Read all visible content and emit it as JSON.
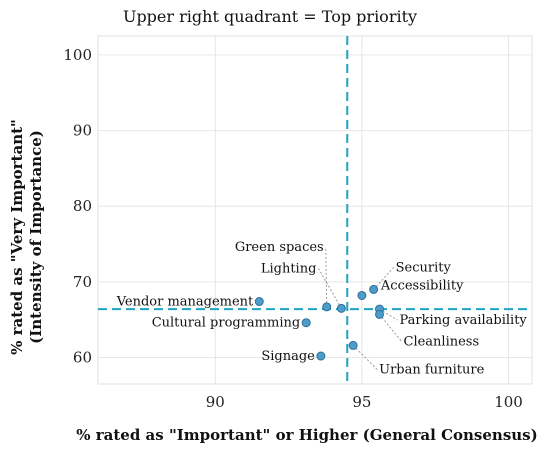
{
  "chart_data": {
    "type": "scatter",
    "title": "Upper right quadrant = Top priority",
    "xlabel": "% rated as \"Important\" or Higher (General Consensus)",
    "ylabel_line1": "% rated as \"Very Important\"",
    "ylabel_line2": "(Intensity of Importance)",
    "xlim": [
      86,
      100.8
    ],
    "ylim": [
      56.5,
      102.5
    ],
    "xticks": [
      90,
      95,
      100
    ],
    "yticks": [
      60,
      70,
      80,
      90,
      100
    ],
    "grid": true,
    "reference_lines": {
      "x": 94.5,
      "y": 66.4
    },
    "point_color": "#4e9cc9",
    "reference_color": "#1fa3c4",
    "points": [
      {
        "label": "Vendor management",
        "x": 91.5,
        "y": 67.4
      },
      {
        "label": "Cultural programming",
        "x": 93.1,
        "y": 64.6
      },
      {
        "label": "Signage",
        "x": 93.6,
        "y": 60.2
      },
      {
        "label": "Green spaces",
        "x": 93.8,
        "y": 66.7
      },
      {
        "label": "Lighting",
        "x": 94.3,
        "y": 66.5
      },
      {
        "label": "Urban furniture",
        "x": 94.7,
        "y": 61.6
      },
      {
        "label": "Accessibility",
        "x": 95.0,
        "y": 68.2
      },
      {
        "label": "Security",
        "x": 95.4,
        "y": 69.0
      },
      {
        "label": "Parking availability",
        "x": 95.6,
        "y": 66.4
      },
      {
        "label": "Cleanliness",
        "x": 95.6,
        "y": 65.7
      }
    ]
  }
}
